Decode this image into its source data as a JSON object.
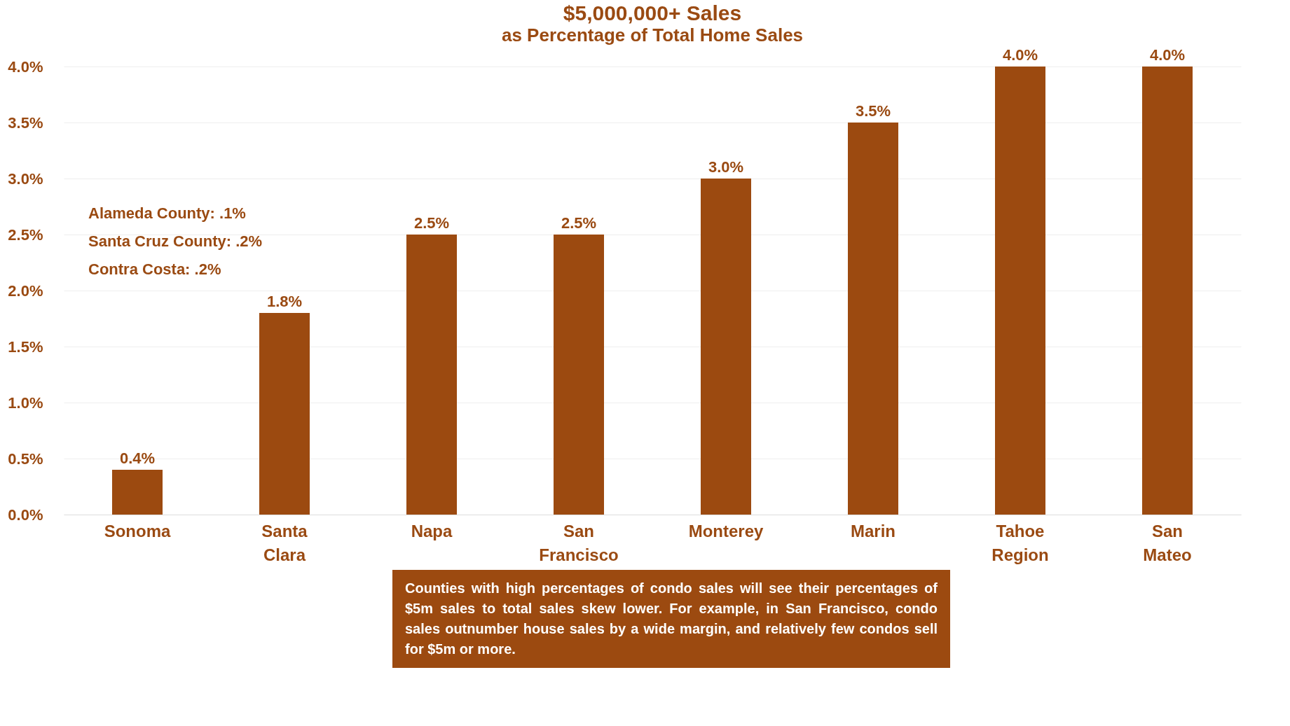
{
  "chart_data": {
    "type": "bar",
    "title": "$5,000,000+ Sales",
    "subtitle": "as Percentage of Total Home Sales",
    "categories": [
      "Sonoma",
      "Santa Clara",
      "Napa",
      "San Francisco",
      "Monterey",
      "Marin",
      "Tahoe Region",
      "San Mateo"
    ],
    "values": [
      0.4,
      1.8,
      2.5,
      2.5,
      3.0,
      3.5,
      4.0,
      4.0
    ],
    "value_labels": [
      "0.4%",
      "1.8%",
      "2.5%",
      "2.5%",
      "3.0%",
      "3.5%",
      "4.0%",
      "4.0%"
    ],
    "color": "#9c4a10",
    "ylim": [
      0,
      4
    ],
    "yticks": [
      {
        "value": 0,
        "label": "0.0%"
      },
      {
        "value": 0.5,
        "label": "0.5%"
      },
      {
        "value": 1,
        "label": "1.0%"
      },
      {
        "value": 1.5,
        "label": "1.5%"
      },
      {
        "value": 2,
        "label": "2.0%"
      },
      {
        "value": 2.5,
        "label": "2.5%"
      },
      {
        "value": 3,
        "label": "3.0%"
      },
      {
        "value": 3.5,
        "label": "3.5%"
      },
      {
        "value": 4,
        "label": "4.0%"
      }
    ],
    "grid": "y",
    "annotations": [
      "Alameda County:  .1%",
      "Santa Cruz County:  .2%",
      "Contra Costa:  .2%",
      "Counties with high percentages of condo sales will see their percentages of $5m sales to total sales skew lower. For example, in San Francisco, condo sales outnumber house sales by a wide margin, and relatively few condos sell for $5m or more."
    ]
  }
}
